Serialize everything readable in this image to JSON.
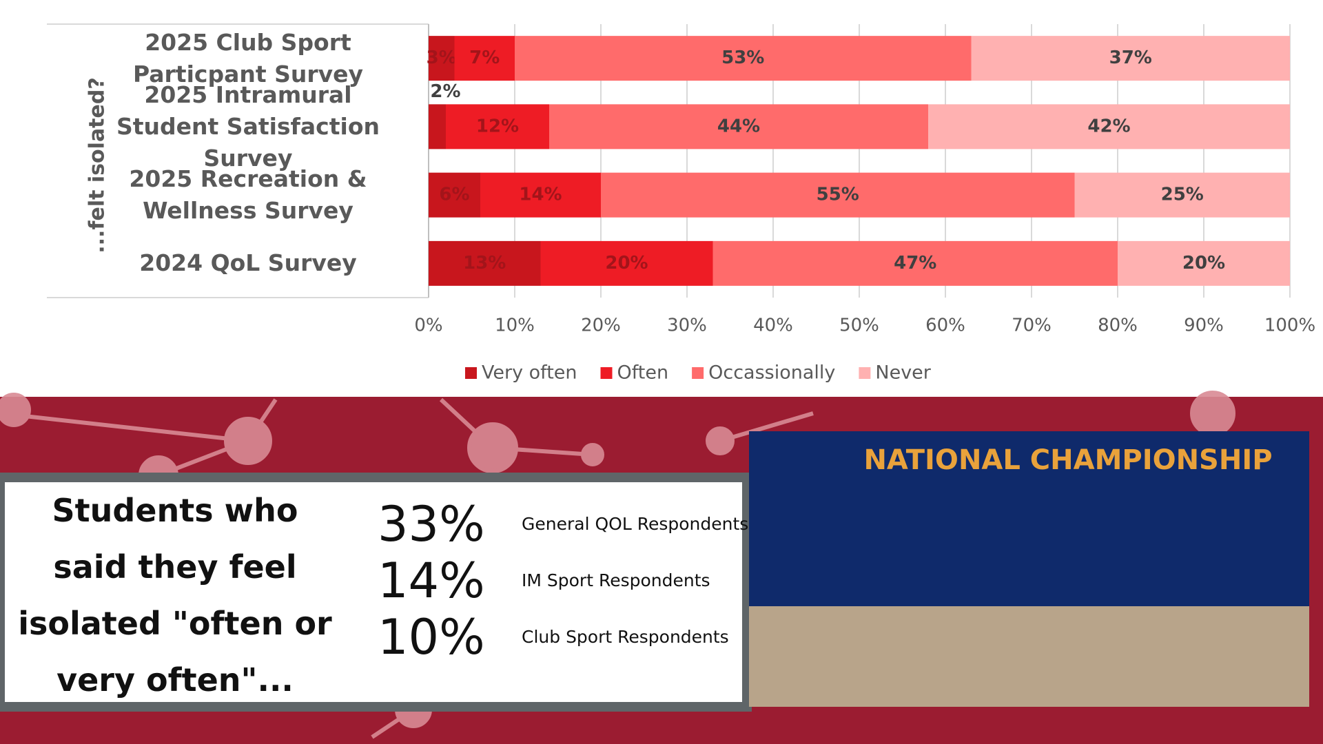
{
  "chart_data": {
    "type": "stacked_barh",
    "ylabel": "...felt isolated?",
    "categories": [
      "2025 Club Sport Particpant Survey",
      "2025 Intramural Student Satisfaction Survey",
      "2025 Recreation & Wellness Survey",
      "2024 QoL Survey"
    ],
    "series": [
      {
        "name": "Very often",
        "color": "#c8161d",
        "values": [
          3,
          2,
          6,
          13
        ],
        "value_labels": [
          "3%",
          "2%",
          "6%",
          "13%"
        ]
      },
      {
        "name": "Often",
        "color": "#ee1c25",
        "values": [
          7,
          12,
          14,
          20
        ],
        "value_labels": [
          "7%",
          "12%",
          "14%",
          "20%"
        ]
      },
      {
        "name": "Occassionally",
        "color": "#ff6b6b",
        "values": [
          53,
          44,
          55,
          47
        ],
        "value_labels": [
          "53%",
          "44%",
          "55%",
          "47%"
        ]
      },
      {
        "name": "Never",
        "color": "#ffb1b1",
        "values": [
          37,
          42,
          25,
          20
        ],
        "value_labels": [
          "37%",
          "42%",
          "25%",
          "20%"
        ]
      }
    ],
    "xlim": [
      0,
      100
    ],
    "xticks": [
      {
        "value": 0,
        "label": "0%"
      },
      {
        "value": 10,
        "label": "10%"
      },
      {
        "value": 20,
        "label": "20%"
      },
      {
        "value": 30,
        "label": "30%"
      },
      {
        "value": 40,
        "label": "40%"
      },
      {
        "value": 50,
        "label": "50%"
      },
      {
        "value": 60,
        "label": "60%"
      },
      {
        "value": 70,
        "label": "70%"
      },
      {
        "value": 80,
        "label": "80%"
      },
      {
        "value": 90,
        "label": "90%"
      },
      {
        "value": 100,
        "label": "100%"
      }
    ],
    "grid": true,
    "legend": "bottom"
  },
  "callout": {
    "heading": "Students who said they feel isolated \"often or very often\"...",
    "stats": [
      {
        "figure": "33%",
        "label": "General QOL Respondents"
      },
      {
        "figure": "14%",
        "label": "IM Sport Respondents"
      },
      {
        "figure": "10%",
        "label": "Club Sport Respondents"
      }
    ]
  },
  "photo": {
    "banner": "NATIONAL CHAMPIONSHIP"
  }
}
